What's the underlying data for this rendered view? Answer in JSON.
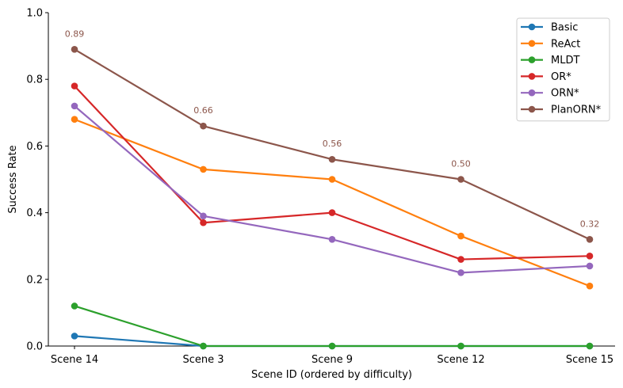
{
  "chart_data": {
    "type": "line",
    "xlabel": "Scene ID (ordered by difficulty)",
    "ylabel": "Success Rate",
    "ylim": [
      0,
      1.0
    ],
    "yticks": [
      "0.0",
      "0.2",
      "0.4",
      "0.6",
      "0.8",
      "1.0"
    ],
    "ytick_values": [
      0,
      0.2,
      0.4,
      0.6,
      0.8,
      1.0
    ],
    "categories": [
      "Scene 14",
      "Scene 3",
      "Scene 9",
      "Scene 12",
      "Scene 15"
    ],
    "grid": false,
    "legend_position": "top-right",
    "series": [
      {
        "name": "Basic",
        "color": "#1f77b4",
        "values": [
          0.03,
          0.0,
          0.0,
          0.0,
          0.0
        ]
      },
      {
        "name": "ReAct",
        "color": "#ff7f0e",
        "values": [
          0.68,
          0.53,
          0.5,
          0.33,
          0.18
        ]
      },
      {
        "name": "MLDT",
        "color": "#2ca02c",
        "values": [
          0.12,
          0.0,
          0.0,
          0.0,
          0.0
        ]
      },
      {
        "name": "OR*",
        "color": "#d62728",
        "values": [
          0.78,
          0.37,
          0.4,
          0.26,
          0.27
        ]
      },
      {
        "name": "ORN*",
        "color": "#9467bd",
        "values": [
          0.72,
          0.39,
          0.32,
          0.22,
          0.24
        ]
      },
      {
        "name": "PlanORN*",
        "color": "#8c564b",
        "values": [
          0.89,
          0.66,
          0.56,
          0.5,
          0.32
        ]
      }
    ],
    "annotations": {
      "series": "PlanORN*",
      "labels": [
        "0.89",
        "0.66",
        "0.56",
        "0.50",
        "0.32"
      ]
    }
  }
}
